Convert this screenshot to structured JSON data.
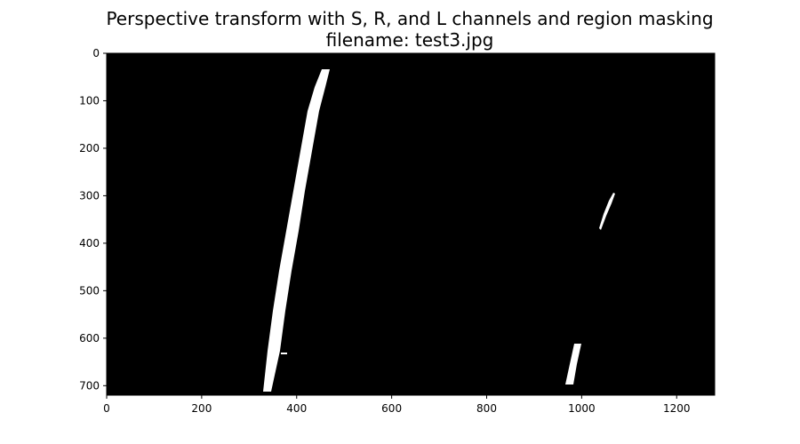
{
  "figure": {
    "title": "Perspective transform with S, R, and L channels and region masking",
    "subtitle": "filename: test3.jpg"
  },
  "image": {
    "width": 1280,
    "height": 720,
    "background_color": "#000000",
    "line_color": "#ffffff",
    "x_ticks": [
      {
        "value": 0,
        "label": "0"
      },
      {
        "value": 200,
        "label": "200"
      },
      {
        "value": 400,
        "label": "400"
      },
      {
        "value": 600,
        "label": "600"
      },
      {
        "value": 800,
        "label": "800"
      },
      {
        "value": 1000,
        "label": "1000"
      },
      {
        "value": 1200,
        "label": "1200"
      }
    ],
    "y_ticks": [
      {
        "value": 0,
        "label": "0"
      },
      {
        "value": 100,
        "label": "100"
      },
      {
        "value": 200,
        "label": "200"
      },
      {
        "value": 300,
        "label": "300"
      },
      {
        "value": 400,
        "label": "400"
      },
      {
        "value": 500,
        "label": "500"
      },
      {
        "value": 600,
        "label": "600"
      },
      {
        "value": 700,
        "label": "700"
      }
    ]
  }
}
